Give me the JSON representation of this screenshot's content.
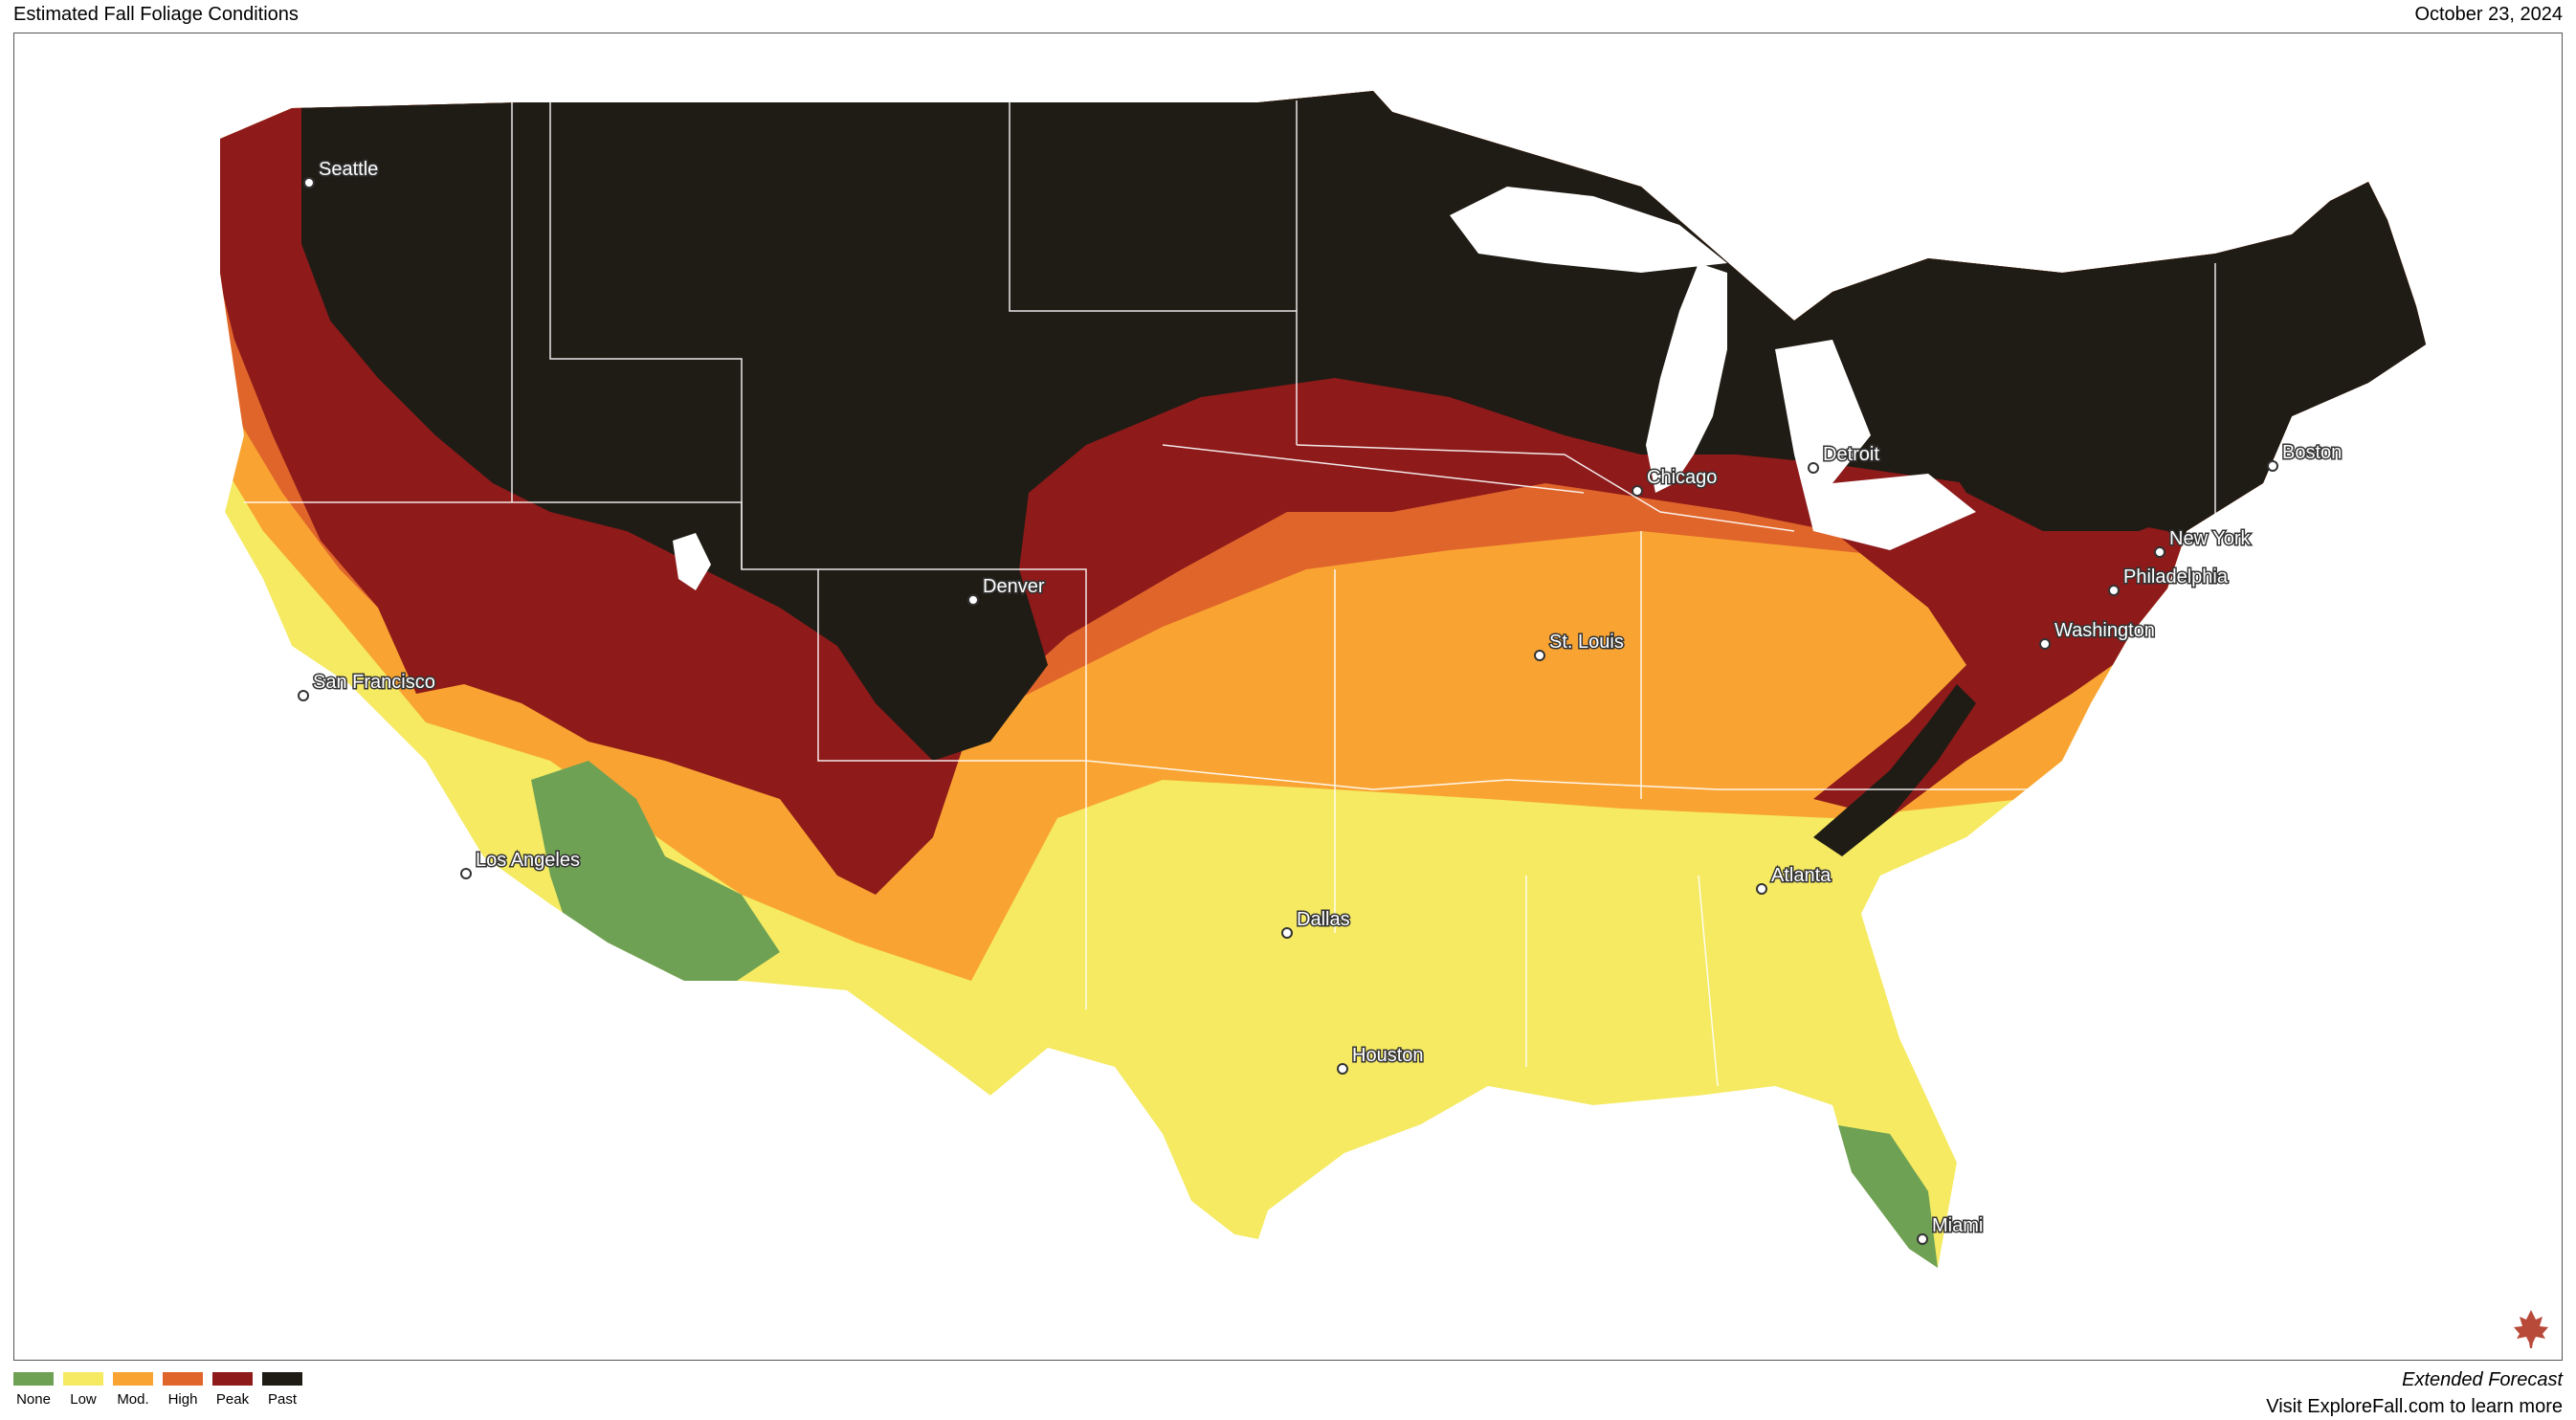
{
  "header": {
    "title": "Estimated Fall Foliage Conditions",
    "date": "October 23, 2024"
  },
  "legend": {
    "items": [
      {
        "label": "None",
        "color": "#6fa154"
      },
      {
        "label": "Low",
        "color": "#f5ea62"
      },
      {
        "label": "Mod.",
        "color": "#f9a432"
      },
      {
        "label": "High",
        "color": "#e0652a"
      },
      {
        "label": "Peak",
        "color": "#8e1a1a"
      },
      {
        "label": "Past",
        "color": "#1f1c15"
      }
    ]
  },
  "cities": [
    {
      "name": "Seattle"
    },
    {
      "name": "San Francisco"
    },
    {
      "name": "Los Angeles"
    },
    {
      "name": "Denver"
    },
    {
      "name": "Dallas"
    },
    {
      "name": "Houston"
    },
    {
      "name": "St. Louis"
    },
    {
      "name": "Chicago"
    },
    {
      "name": "Detroit"
    },
    {
      "name": "Atlanta"
    },
    {
      "name": "Miami"
    },
    {
      "name": "Washington"
    },
    {
      "name": "Philadelphia"
    },
    {
      "name": "New York"
    },
    {
      "name": "Boston"
    }
  ],
  "footer": {
    "forecast": "Extended Forecast",
    "visit": "Visit ExploreFall.com to learn more"
  },
  "logo": "maple-leaf-icon"
}
